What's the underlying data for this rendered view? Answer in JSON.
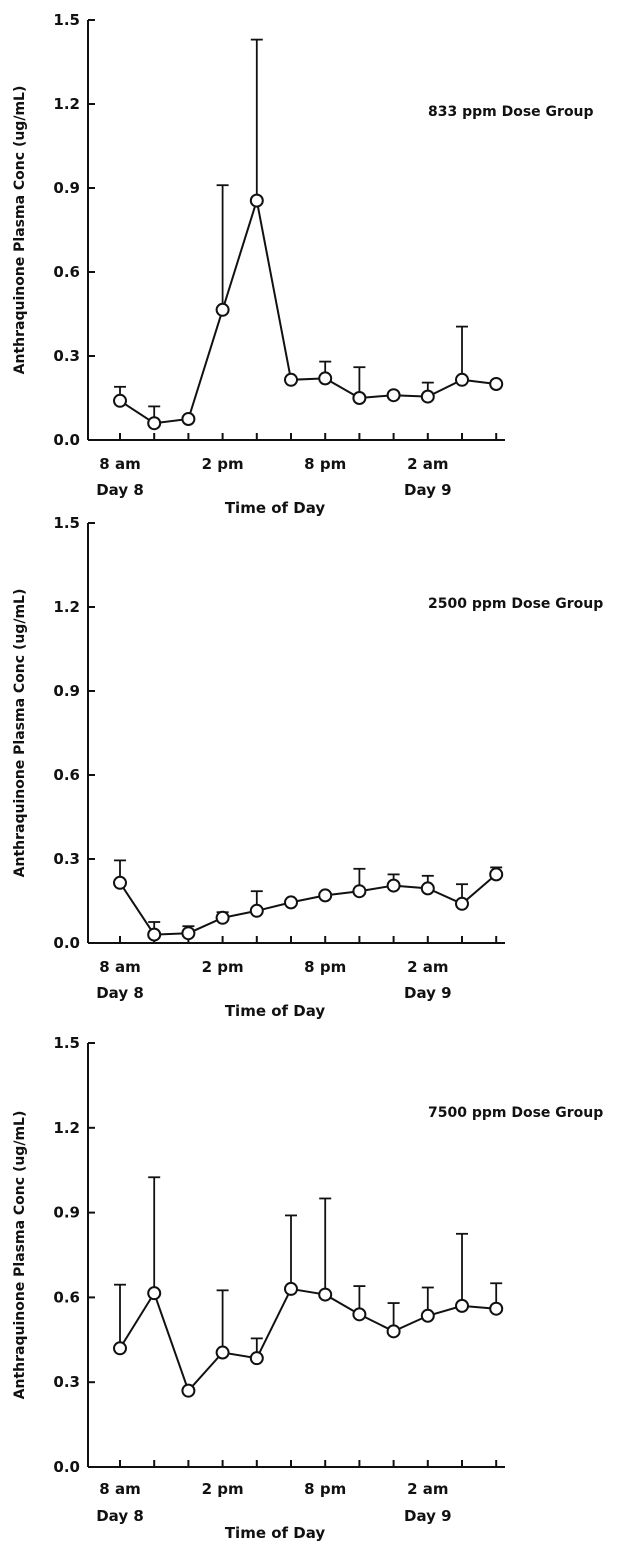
{
  "chart_data": [
    {
      "type": "line",
      "annotation": "833 ppm Dose Group",
      "ylabel": "Anthraquinone Plasma Conc (ug/mL)",
      "xlabel": "Time of Day",
      "ylim": [
        0,
        1.5
      ],
      "yticks": [
        "0.0",
        "0.3",
        "0.6",
        "0.9",
        "1.2",
        "1.5"
      ],
      "xtick_labels": [
        {
          "x": 8,
          "label": "8 am",
          "sub": "Day 8"
        },
        {
          "x": 14,
          "label": "2 pm",
          "sub": ""
        },
        {
          "x": 20,
          "label": "8 pm",
          "sub": ""
        },
        {
          "x": 26,
          "label": "2 am",
          "sub": "Day 9"
        }
      ],
      "series": [
        {
          "x": [
            8,
            10,
            12,
            14,
            16,
            18,
            20,
            22,
            24,
            26,
            28,
            30
          ],
          "values": [
            0.14,
            0.06,
            0.075,
            0.465,
            0.855,
            0.215,
            0.22,
            0.15,
            0.16,
            0.155,
            0.215,
            0.2
          ],
          "error_upper": [
            0.19,
            0.12,
            null,
            0.91,
            1.43,
            null,
            0.28,
            0.26,
            null,
            0.205,
            0.405,
            null
          ]
        }
      ]
    },
    {
      "type": "line",
      "annotation": "2500 ppm Dose Group",
      "ylabel": "Anthraquinone Plasma Conc (ug/mL)",
      "xlabel": "Time of Day",
      "ylim": [
        0,
        1.5
      ],
      "yticks": [
        "0.0",
        "0.3",
        "0.6",
        "0.9",
        "1.2",
        "1.5"
      ],
      "xtick_labels": [
        {
          "x": 8,
          "label": "8 am",
          "sub": "Day 8"
        },
        {
          "x": 14,
          "label": "2 pm",
          "sub": ""
        },
        {
          "x": 20,
          "label": "8 pm",
          "sub": ""
        },
        {
          "x": 26,
          "label": "2 am",
          "sub": "Day 9"
        }
      ],
      "series": [
        {
          "x": [
            8,
            10,
            12,
            14,
            16,
            18,
            20,
            22,
            24,
            26,
            28,
            30
          ],
          "values": [
            0.215,
            0.03,
            0.035,
            0.09,
            0.115,
            0.145,
            0.17,
            0.185,
            0.205,
            0.195,
            0.14,
            0.245
          ],
          "error_upper": [
            0.295,
            0.075,
            0.06,
            0.11,
            0.185,
            null,
            null,
            0.265,
            0.245,
            0.24,
            0.21,
            0.27
          ]
        }
      ]
    },
    {
      "type": "line",
      "annotation": "7500 ppm Dose Group",
      "ylabel": "Anthraquinone Plasma Conc (ug/mL)",
      "xlabel": "Time of Day",
      "ylim": [
        0,
        1.5
      ],
      "yticks": [
        "0.0",
        "0.3",
        "0.6",
        "0.9",
        "1.2",
        "1.5"
      ],
      "xtick_labels": [
        {
          "x": 8,
          "label": "8 am",
          "sub": "Day 8"
        },
        {
          "x": 14,
          "label": "2 pm",
          "sub": ""
        },
        {
          "x": 20,
          "label": "8 pm",
          "sub": ""
        },
        {
          "x": 26,
          "label": "2 am",
          "sub": "Day 9"
        }
      ],
      "series": [
        {
          "x": [
            8,
            10,
            12,
            14,
            16,
            18,
            20,
            22,
            24,
            26,
            28,
            30
          ],
          "values": [
            0.42,
            0.615,
            0.27,
            0.405,
            0.385,
            0.63,
            0.61,
            0.54,
            0.48,
            0.535,
            0.57,
            0.56
          ],
          "error_upper": [
            0.645,
            1.025,
            null,
            0.625,
            0.455,
            0.89,
            0.95,
            0.64,
            0.58,
            0.635,
            0.825,
            0.65
          ]
        }
      ]
    }
  ]
}
